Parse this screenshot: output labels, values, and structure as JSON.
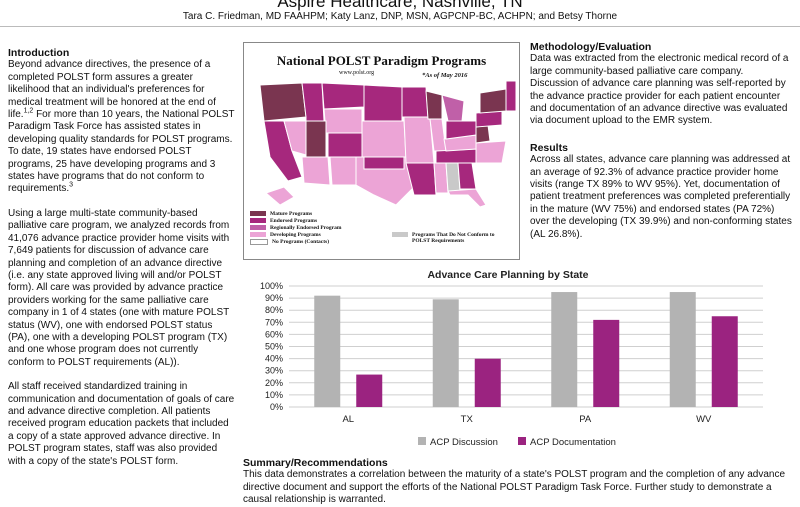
{
  "header": {
    "title": "Aspire Healthcare, Nashville, TN",
    "authors": "Tara C. Friedman, MD FAAHPM; Katy Lanz, DNP, MSN, AGPCNP-BC, ACHPN; and Betsy Thorne"
  },
  "intro": {
    "heading": "Introduction",
    "p1": "Beyond advance directives, the presence of a completed POLST form assures a greater likelihood that an individual's preferences for medical treatment will be honored at the end of life.",
    "p1_sup": "1,2",
    "p1b": " For more than 10 years, the National POLST Paradigm Task Force has assisted states in developing quality standards for POLST programs. To date, 19 states have endorsed POLST programs, 25 have developing programs and 3 states have programs that do not conform to requirements.",
    "p1b_sup": "3",
    "p2": "Using a large multi-state community-based palliative care program, we analyzed records from 41,076 advance practice provider home visits with 7,649 patients for discussion of advance care planning and completion of an advance directive (i.e. any state approved living will and/or POLST form).  All care was provided by advance practice providers working for the same palliative care company in 1 of 4 states (one with mature POLST status (WV), one with endorsed POLST status (PA), one with a developing POLST program (TX) and one whose program does not currently conform  to POLST requirements (AL)).",
    "p3": "All staff received standardized training in communication and documentation of goals of care and advance directive completion. All patients received program education packets that included a copy of a state approved advance directive.  In POLST program states, staff was also provided with a copy of the state's POLST form."
  },
  "map": {
    "title": "National POLST Paradigm Programs",
    "url": "www.polst.org",
    "asof": "*As of May 2016",
    "legend": [
      {
        "label": "Mature Programs",
        "color": "#7a3550"
      },
      {
        "label": "Endorsed Programs",
        "color": "#a6287d"
      },
      {
        "label": "Regionally Endorsed Program",
        "color": "#c060a8"
      },
      {
        "label": "Developing Programs",
        "color": "#eca4d6"
      },
      {
        "label": "No Programs (Contacts)",
        "color": "#ffffff"
      },
      {
        "label": "Programs That Do Not Conform to POLST Requirements",
        "color": "#c9c9c9"
      }
    ]
  },
  "methods": {
    "heading": "Methodology/Evaluation",
    "text": "Data was extracted from the electronic medical record of a large community-based palliative care company. Discussion of advance care planning was self-reported by the advance practice provider for each patient encounter and documentation of an advance directive was evaluated via document upload to the EMR system."
  },
  "results": {
    "heading": "Results",
    "text": "Across all states, advance care planning was addressed at an average of 92.3% of advance practice provider home visits (range TX 89% to WV 95%).  Yet, documentation of patient treatment preferences was completed preferentially in the mature (WV 75%) and endorsed states (PA 72%) over the developing (TX 39.9%) and non-conforming states (AL 26.8%)."
  },
  "summary": {
    "heading": "Summary/Recommendations",
    "text": "This data demonstrates a correlation between the maturity of a state's POLST program and the completion of any advance directive document and support the efforts of the National POLST Paradigm Task Force.  Further study to demonstrate a causal relationship is warranted."
  },
  "chart_data": {
    "type": "bar",
    "title": "Advance Care Planning by State",
    "categories": [
      "AL",
      "TX",
      "PA",
      "WV"
    ],
    "series": [
      {
        "name": "ACP Discussion",
        "values": [
          92,
          89,
          95,
          95
        ],
        "color": "#b3b3b3"
      },
      {
        "name": "ACP Documentation",
        "values": [
          26.8,
          39.9,
          72,
          75
        ],
        "color": "#9b2380"
      }
    ],
    "ylim": [
      0,
      100
    ],
    "yticks": [
      "0%",
      "10%",
      "20%",
      "30%",
      "40%",
      "50%",
      "60%",
      "70%",
      "80%",
      "90%",
      "100%"
    ],
    "grid": true,
    "legend": "bottom"
  }
}
